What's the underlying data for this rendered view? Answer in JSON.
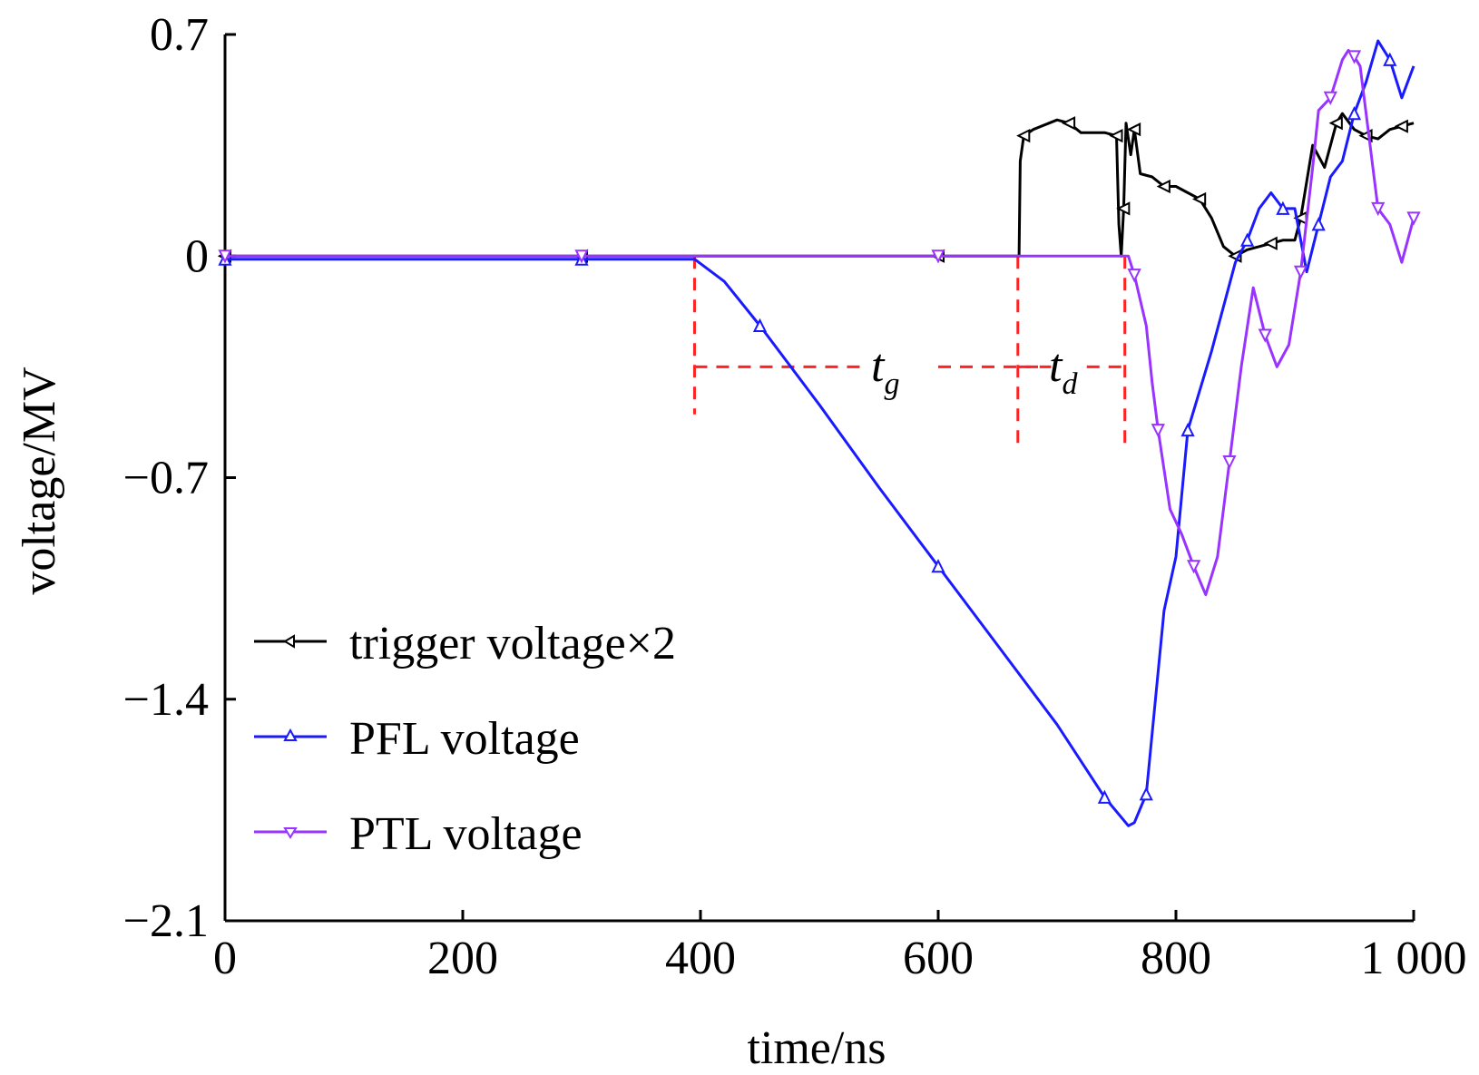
{
  "chart_data": {
    "type": "line",
    "xlabel": "time/ns",
    "ylabel": "voltage/MV",
    "xlim": [
      0,
      1000
    ],
    "ylim": [
      -2.1,
      0.7
    ],
    "x_ticks": [
      0,
      200,
      400,
      600,
      800,
      1000
    ],
    "x_tick_labels": [
      "0",
      "200",
      "400",
      "600",
      "800",
      "1 000"
    ],
    "y_ticks": [
      0.7,
      0,
      -0.7,
      -1.4,
      -2.1
    ],
    "y_tick_labels": [
      "0.7",
      "0",
      "−0.7",
      "−1.4",
      "−2.1"
    ],
    "grid": false,
    "legend_position": "lower-left",
    "series": [
      {
        "name": "trigger voltage×2",
        "color": "#000000",
        "marker": "triangle-left",
        "x": [
          0,
          100,
          200,
          300,
          400,
          500,
          600,
          668,
          669,
          672,
          680,
          700,
          710,
          720,
          740,
          750,
          752,
          754,
          756,
          758,
          762,
          765,
          770,
          780,
          790,
          800,
          810,
          820,
          830,
          840,
          850,
          860,
          870,
          880,
          890,
          900,
          905,
          915,
          925,
          935,
          940,
          950,
          960,
          970,
          980,
          990,
          1000
        ],
        "y": [
          0,
          0,
          0,
          0,
          0,
          0,
          0,
          0,
          0.3,
          0.38,
          0.4,
          0.43,
          0.42,
          0.39,
          0.39,
          0.38,
          0.1,
          0.0,
          0.15,
          0.42,
          0.32,
          0.4,
          0.26,
          0.25,
          0.22,
          0.22,
          0.2,
          0.18,
          0.12,
          0.03,
          0.0,
          0.02,
          0.03,
          0.04,
          0.05,
          0.05,
          0.12,
          0.35,
          0.28,
          0.42,
          0.45,
          0.4,
          0.38,
          0.37,
          0.4,
          0.41,
          0.42
        ]
      },
      {
        "name": "PFL voltage",
        "color": "#1a1aff",
        "marker": "triangle-up",
        "x": [
          0,
          100,
          200,
          300,
          395,
          420,
          450,
          500,
          550,
          600,
          650,
          700,
          740,
          760,
          765,
          775,
          790,
          800,
          810,
          830,
          850,
          860,
          870,
          880,
          890,
          900,
          910,
          920,
          930,
          940,
          950,
          960,
          970,
          980,
          990,
          1000
        ],
        "y": [
          -0.01,
          -0.01,
          -0.01,
          -0.01,
          -0.01,
          -0.08,
          -0.22,
          -0.47,
          -0.73,
          -0.98,
          -1.23,
          -1.48,
          -1.71,
          -1.8,
          -1.79,
          -1.7,
          -1.12,
          -0.95,
          -0.55,
          -0.3,
          -0.02,
          0.05,
          0.15,
          0.2,
          0.15,
          0.15,
          -0.05,
          0.1,
          0.25,
          0.3,
          0.45,
          0.55,
          0.68,
          0.62,
          0.5,
          0.6
        ]
      },
      {
        "name": "PTL voltage",
        "color": "#9933ff",
        "marker": "triangle-down",
        "x": [
          0,
          100,
          200,
          300,
          400,
          500,
          600,
          700,
          760,
          765,
          775,
          780,
          785,
          795,
          805,
          815,
          825,
          835,
          845,
          855,
          865,
          875,
          885,
          895,
          905,
          915,
          920,
          930,
          940,
          945,
          950,
          955,
          960,
          970,
          980,
          990,
          1000
        ],
        "y": [
          0,
          0,
          0,
          0,
          0,
          0,
          0,
          0,
          0,
          -0.06,
          -0.22,
          -0.4,
          -0.55,
          -0.8,
          -0.88,
          -0.98,
          -1.07,
          -0.95,
          -0.65,
          -0.35,
          -0.1,
          -0.25,
          -0.35,
          -0.28,
          -0.05,
          0.28,
          0.46,
          0.5,
          0.62,
          0.65,
          0.63,
          0.6,
          0.45,
          0.15,
          0.1,
          -0.02,
          0.12
        ]
      }
    ],
    "annotations": [
      {
        "main": "t",
        "sub": "g"
      },
      {
        "main": "t",
        "sub": "d"
      }
    ],
    "guide_color": "#ff2222"
  }
}
